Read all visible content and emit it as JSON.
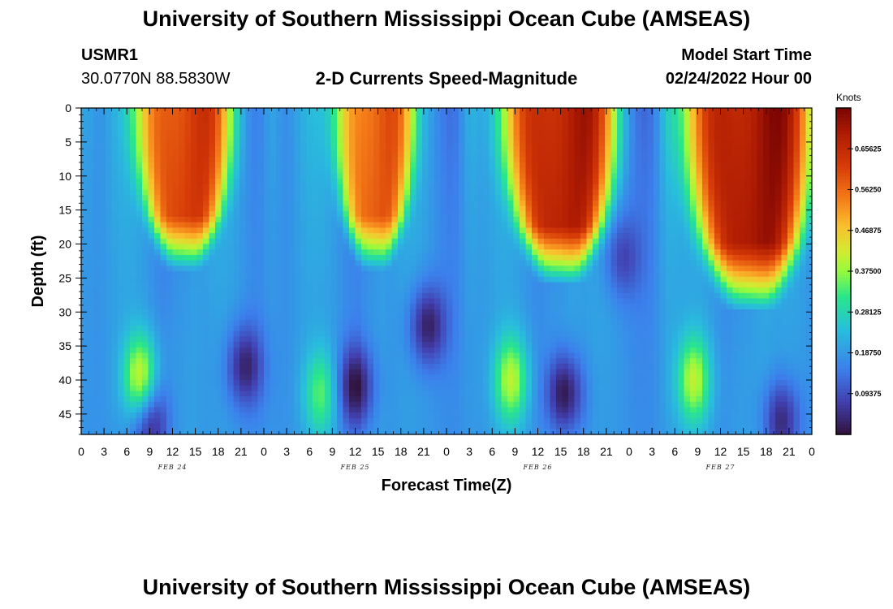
{
  "header": {
    "title": "University of Southern Mississippi Ocean Cube (AMSEAS)",
    "station_id": "USMR1",
    "location": "30.0770N  88.5830W",
    "subtitle": "2-D Currents Speed-Magnitude",
    "model_start_label": "Model Start Time",
    "model_start_value": "02/24/2022 Hour 00"
  },
  "footer": {
    "title": "University of Southern Mississippi Ocean Cube (AMSEAS)"
  },
  "chart_data": {
    "type": "heatmap",
    "title": "2-D Currents Speed-Magnitude",
    "xlabel": "Forecast Time(Z)",
    "ylabel": "Depth (ft)",
    "x_range_hours": [
      0,
      96
    ],
    "y_range_ft": [
      0,
      48
    ],
    "x_tick_labels": [
      "0",
      "3",
      "6",
      "9",
      "12",
      "15",
      "18",
      "21",
      "0",
      "3",
      "6",
      "9",
      "12",
      "15",
      "18",
      "21",
      "0",
      "3",
      "6",
      "9",
      "12",
      "15",
      "18",
      "21",
      "0",
      "3",
      "6",
      "9",
      "12",
      "15",
      "18",
      "21",
      "0"
    ],
    "y_tick_labels": [
      "0",
      "5",
      "10",
      "15",
      "20",
      "25",
      "30",
      "35",
      "40",
      "45"
    ],
    "y_tick_values": [
      0,
      5,
      10,
      15,
      20,
      25,
      30,
      35,
      40,
      45
    ],
    "day_labels": [
      {
        "text": "FEB 24",
        "hour": 12
      },
      {
        "text": "FEB 25",
        "hour": 36
      },
      {
        "text": "FEB 26",
        "hour": 60
      },
      {
        "text": "FEB 27",
        "hour": 84
      }
    ],
    "colorbar": {
      "unit": "Knots",
      "min": 0.0,
      "max": 0.75,
      "tick_labels": [
        "0.65625",
        "0.56250",
        "0.46875",
        "0.37500",
        "0.28125",
        "0.18750",
        "0.09375"
      ],
      "tick_values": [
        0.65625,
        0.5625,
        0.46875,
        0.375,
        0.28125,
        0.1875,
        0.09375
      ]
    },
    "features": [
      {
        "kind": "surface-high",
        "hour_center": 13.5,
        "hour_halfwidth": 6,
        "max_depth_ft": 24,
        "value": 0.64
      },
      {
        "kind": "surface-high",
        "hour_center": 38.5,
        "hour_halfwidth": 5,
        "max_depth_ft": 24,
        "value": 0.6
      },
      {
        "kind": "surface-high",
        "hour_center": 63,
        "hour_halfwidth": 7,
        "max_depth_ft": 26,
        "value": 0.7
      },
      {
        "kind": "surface-high",
        "hour_center": 88,
        "hour_halfwidth": 8,
        "max_depth_ft": 30,
        "value": 0.72
      },
      {
        "kind": "deep-high",
        "hour_center": 7.8,
        "depth_center_ft": 40,
        "value": 0.42
      },
      {
        "kind": "deep-high",
        "hour_center": 31.5,
        "depth_center_ft": 42,
        "value": 0.32
      },
      {
        "kind": "deep-high",
        "hour_center": 56.5,
        "depth_center_ft": 40,
        "value": 0.38
      },
      {
        "kind": "deep-high",
        "hour_center": 80.5,
        "depth_center_ft": 40,
        "value": 0.38
      },
      {
        "kind": "low",
        "hour_center": 8.8,
        "depth_center_ft": 46,
        "value": 0.03
      },
      {
        "kind": "low",
        "hour_center": 21.5,
        "depth_center_ft": 38,
        "value": 0.05
      },
      {
        "kind": "low",
        "hour_center": 36,
        "depth_center_ft": 41,
        "value": 0.03
      },
      {
        "kind": "low",
        "hour_center": 45.5,
        "depth_center_ft": 32,
        "value": 0.04
      },
      {
        "kind": "low",
        "hour_center": 63.5,
        "depth_center_ft": 42,
        "value": 0.02
      },
      {
        "kind": "low",
        "hour_center": 71,
        "depth_center_ft": 22,
        "value": 0.1
      },
      {
        "kind": "low",
        "hour_center": 92,
        "depth_center_ft": 46,
        "value": 0.05
      }
    ]
  }
}
